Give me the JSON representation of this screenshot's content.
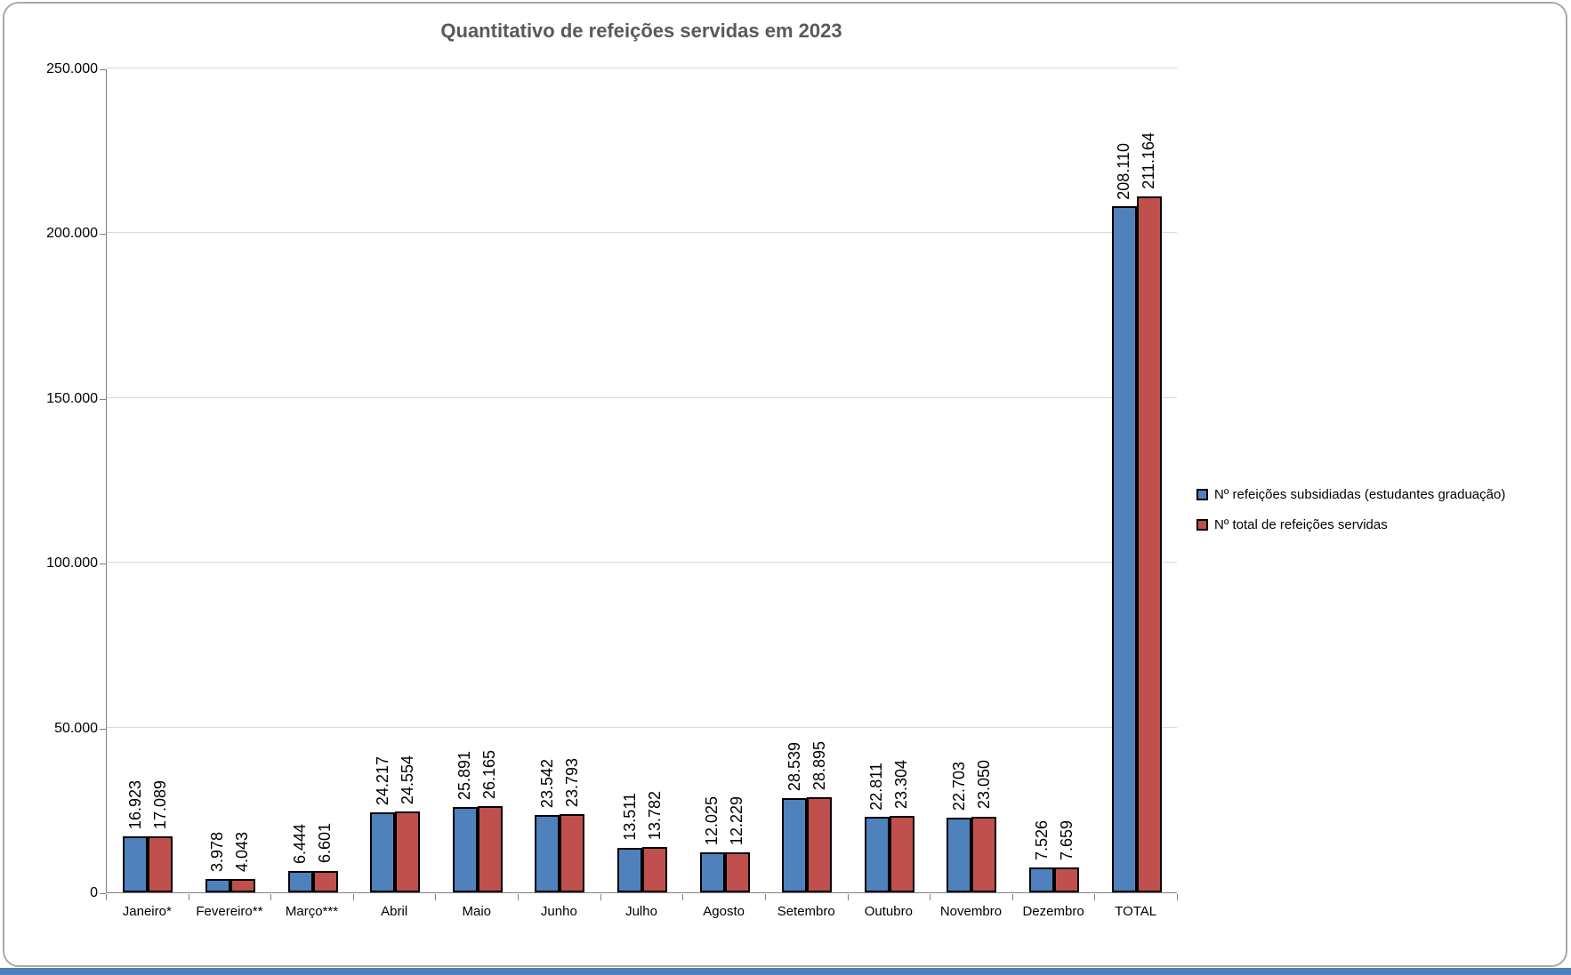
{
  "chart_data": {
    "type": "bar",
    "title": "Quantitativo de refeições servidas em 2023",
    "categories": [
      "Janeiro*",
      "Fevereiro**",
      "Março***",
      "Abril",
      "Maio",
      "Junho",
      "Julho",
      "Agosto",
      "Setembro",
      "Outubro",
      "Novembro",
      "Dezembro",
      "TOTAL"
    ],
    "series": [
      {
        "name": "Nº refeições subsidiadas (estudantes graduação)",
        "color": "#4f81bd",
        "values": [
          16923,
          3978,
          6444,
          24217,
          25891,
          23542,
          13511,
          12025,
          28539,
          22811,
          22703,
          7526,
          208110
        ]
      },
      {
        "name": "Nº total de refeições servidas",
        "color": "#c0504d",
        "values": [
          17089,
          4043,
          6601,
          24554,
          26165,
          23793,
          13782,
          12229,
          28895,
          23304,
          23050,
          7659,
          211164
        ]
      }
    ],
    "ylim": [
      0,
      250000
    ],
    "ytick_step": 50000,
    "ytick_labels": [
      "0",
      "50.000",
      "100.000",
      "150.000",
      "200.000",
      "250.000"
    ],
    "grid": true,
    "legend_position": "right",
    "data_label_format": "thousands-dot-separator, rotated 90"
  },
  "frame": {
    "border_color": "#a8a8a8",
    "bottom_strip_color": "#4f81bd"
  }
}
